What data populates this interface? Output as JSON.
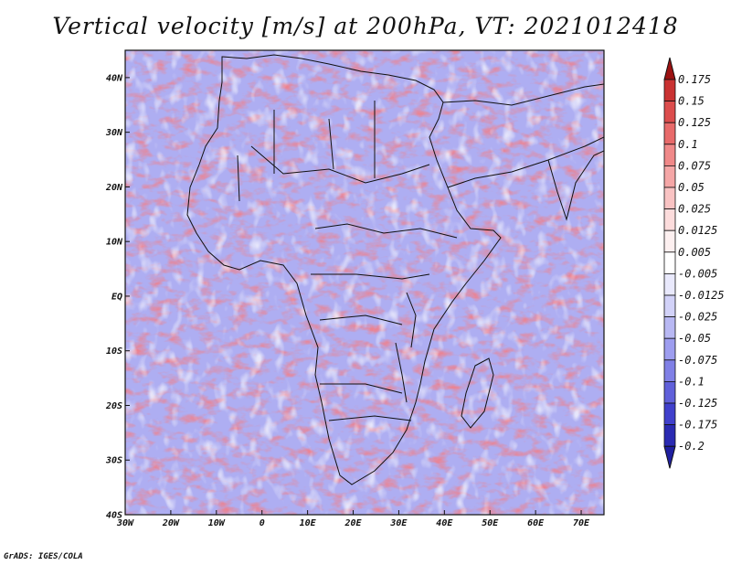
{
  "title": "Vertical velocity [m/s] at 200hPa, VT: 2021012418",
  "credit": "GrADS: IGES/COLA",
  "map": {
    "lon_range": [
      -30,
      75
    ],
    "lat_range": [
      -40,
      45
    ],
    "lat_ticks": [
      {
        "value": 40,
        "label": "40N"
      },
      {
        "value": 30,
        "label": "30N"
      },
      {
        "value": 20,
        "label": "20N"
      },
      {
        "value": 10,
        "label": "10N"
      },
      {
        "value": 0,
        "label": "EQ"
      },
      {
        "value": -10,
        "label": "10S"
      },
      {
        "value": -20,
        "label": "20S"
      },
      {
        "value": -30,
        "label": "30S"
      },
      {
        "value": -40,
        "label": "40S"
      }
    ],
    "lon_ticks": [
      {
        "value": -30,
        "label": "30W"
      },
      {
        "value": -20,
        "label": "20W"
      },
      {
        "value": -10,
        "label": "10W"
      },
      {
        "value": 0,
        "label": "0"
      },
      {
        "value": 10,
        "label": "10E"
      },
      {
        "value": 20,
        "label": "20E"
      },
      {
        "value": 30,
        "label": "30E"
      },
      {
        "value": 40,
        "label": "40E"
      },
      {
        "value": 50,
        "label": "50E"
      },
      {
        "value": 60,
        "label": "60E"
      },
      {
        "value": 70,
        "label": "70E"
      }
    ]
  },
  "colorbar": {
    "levels": [
      {
        "label": "0.175",
        "color": "#a81a1a"
      },
      {
        "label": "0.15",
        "color": "#c93232"
      },
      {
        "label": "0.125",
        "color": "#dc4d4d"
      },
      {
        "label": "0.1",
        "color": "#e86a6a"
      },
      {
        "label": "0.075",
        "color": "#f08989"
      },
      {
        "label": "0.05",
        "color": "#f5a7a7"
      },
      {
        "label": "0.025",
        "color": "#f9c3c3"
      },
      {
        "label": "0.0125",
        "color": "#fcdcdc"
      },
      {
        "label": "0.005",
        "color": "#fdf0f0"
      },
      {
        "label": "-0.005",
        "color": "#ffffff"
      },
      {
        "label": "-0.0125",
        "color": "#e9e9fc"
      },
      {
        "label": "-0.025",
        "color": "#d2d2f8"
      },
      {
        "label": "-0.05",
        "color": "#b8b8f3"
      },
      {
        "label": "-0.075",
        "color": "#9d9def"
      },
      {
        "label": "-0.1",
        "color": "#8080e6"
      },
      {
        "label": "-0.125",
        "color": "#6060da"
      },
      {
        "label": "-0.175",
        "color": "#4040cc"
      },
      {
        "label": "-0.2",
        "color": "#2a2ab2"
      }
    ],
    "top_arrow_color": "#9c1212",
    "bottom_arrow_color": "#1f1fa0"
  }
}
